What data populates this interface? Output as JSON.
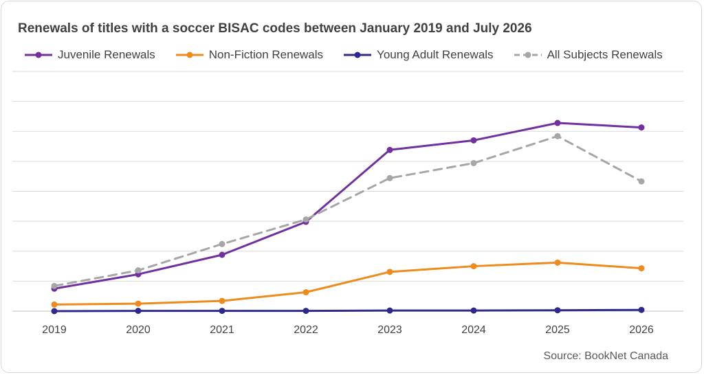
{
  "title": "Renewals of titles with a soccer BISAC codes between January 2019 and July 2026",
  "source": "Source: BookNet Canada",
  "chart_data": {
    "type": "line",
    "title": "Renewals of titles with a soccer BISAC codes between January 2019 and July 2026",
    "xlabel": "",
    "ylabel": "",
    "categories": [
      "2019",
      "2020",
      "2021",
      "2022",
      "2023",
      "2024",
      "2025",
      "2026"
    ],
    "ylim": [
      0,
      8
    ],
    "grid": true,
    "legend_position": "top",
    "y_tick_labels_shown": false,
    "series": [
      {
        "name": "Juvenile Renewals",
        "color": "#7030a0",
        "dash": false,
        "values": [
          0.75,
          1.23,
          1.88,
          2.98,
          5.38,
          5.7,
          6.28,
          6.13
        ]
      },
      {
        "name": "Non-Fiction Renewals",
        "color": "#ed8b1e",
        "dash": false,
        "values": [
          0.22,
          0.25,
          0.34,
          0.63,
          1.31,
          1.5,
          1.62,
          1.43
        ]
      },
      {
        "name": "Young Adult Renewals",
        "color": "#2e2a8c",
        "dash": false,
        "values": [
          0.0,
          0.01,
          0.01,
          0.01,
          0.02,
          0.02,
          0.03,
          0.04
        ]
      },
      {
        "name": "All Subjects Renewals",
        "color": "#a6a6a6",
        "dash": true,
        "values": [
          0.84,
          1.36,
          2.24,
          3.06,
          4.44,
          4.94,
          5.84,
          4.33
        ]
      }
    ]
  }
}
